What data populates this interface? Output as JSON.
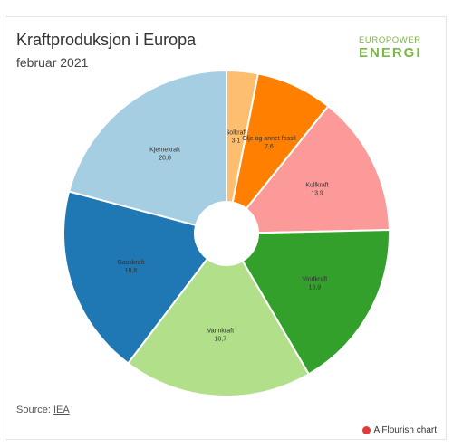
{
  "header": {
    "title": "Kraftproduksjon i Europa",
    "subtitle": "februar 2021"
  },
  "logo": {
    "top": "EUROPOWER",
    "bottom": "ENERGI"
  },
  "footer": {
    "source_prefix": "Source: ",
    "source_link": "IEA",
    "credit": "A Flourish chart"
  },
  "chart_data": {
    "type": "pie",
    "title": "Kraftproduksjon i Europa",
    "subtitle": "februar 2021",
    "donut": true,
    "slices": [
      {
        "label": "Solkraft",
        "value": 3.1,
        "display": "3,1",
        "color": "#fdbf6f"
      },
      {
        "label": "Olje og annet fossil",
        "value": 7.6,
        "display": "7,6",
        "color": "#ff7f00"
      },
      {
        "label": "Kullkraft",
        "value": 13.9,
        "display": "13,9",
        "color": "#fb9a99"
      },
      {
        "label": "Vindkraft",
        "value": 16.9,
        "display": "16,9",
        "color": "#33a02c"
      },
      {
        "label": "Vannkraft",
        "value": 18.7,
        "display": "18,7",
        "color": "#b2df8a"
      },
      {
        "label": "Gasskraft",
        "value": 18.8,
        "display": "18,8",
        "color": "#1f78b4"
      },
      {
        "label": "Kjernekraft",
        "value": 20.8,
        "display": "20,8",
        "color": "#a6cee3"
      }
    ]
  }
}
